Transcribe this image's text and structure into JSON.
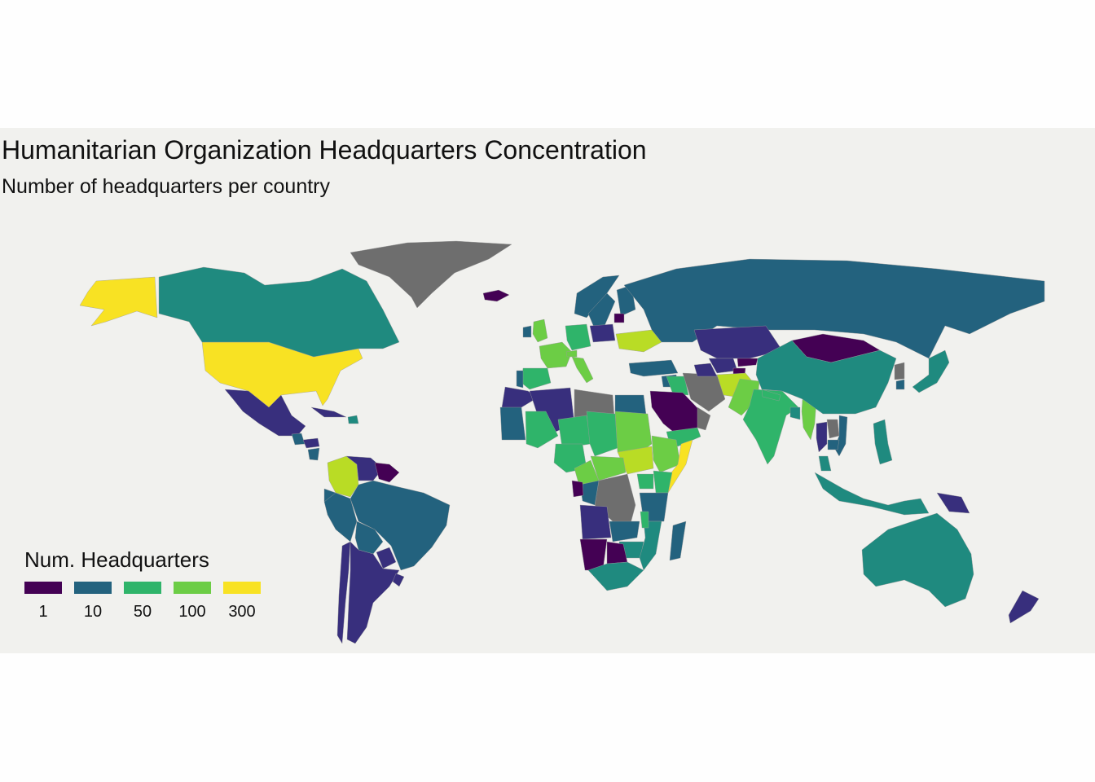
{
  "title": "Humanitarian Organization Headquarters Concentration",
  "subtitle": "Number of headquarters per country",
  "legend": {
    "title": "Num. Headquarters",
    "items": [
      {
        "label": "1",
        "color": "#440154"
      },
      {
        "label": "10",
        "color": "#23627e"
      },
      {
        "label": "50",
        "color": "#2fb46a"
      },
      {
        "label": "100",
        "color": "#6ccd45"
      },
      {
        "label": "300",
        "color": "#f8e223"
      }
    ]
  },
  "colors": {
    "background": "#f1f1ee",
    "no_data": "#6e6e6e",
    "v1": "#440154",
    "v5": "#382f7d",
    "v10": "#23627e",
    "v30": "#1f8a7f",
    "v50": "#2fb46a",
    "v100": "#6ccd45",
    "v200": "#b9dc25",
    "v300": "#f8e223"
  },
  "chart_data": {
    "type": "choropleth",
    "scale": "log",
    "legend_breaks": [
      1,
      10,
      50,
      100,
      300
    ],
    "regions": [
      {
        "name": "United States",
        "value": 300
      },
      {
        "name": "Alaska",
        "value": 300
      },
      {
        "name": "Canada",
        "value": 30
      },
      {
        "name": "Greenland",
        "value": null
      },
      {
        "name": "Iceland",
        "value": 1
      },
      {
        "name": "Mexico",
        "value": 5
      },
      {
        "name": "Guatemala",
        "value": 10
      },
      {
        "name": "Honduras",
        "value": 5
      },
      {
        "name": "Nicaragua",
        "value": 10
      },
      {
        "name": "Cuba",
        "value": 5
      },
      {
        "name": "Haiti",
        "value": 30
      },
      {
        "name": "Colombia",
        "value": 200
      },
      {
        "name": "Venezuela",
        "value": 5
      },
      {
        "name": "Guyana",
        "value": 1
      },
      {
        "name": "Ecuador",
        "value": 10
      },
      {
        "name": "Peru",
        "value": 10
      },
      {
        "name": "Brazil",
        "value": 10
      },
      {
        "name": "Bolivia",
        "value": 10
      },
      {
        "name": "Paraguay",
        "value": 5
      },
      {
        "name": "Chile",
        "value": 5
      },
      {
        "name": "Argentina",
        "value": 5
      },
      {
        "name": "Uruguay",
        "value": 5
      },
      {
        "name": "United Kingdom",
        "value": 100
      },
      {
        "name": "Ireland",
        "value": 10
      },
      {
        "name": "France",
        "value": 100
      },
      {
        "name": "Spain",
        "value": 50
      },
      {
        "name": "Portugal",
        "value": 10
      },
      {
        "name": "Italy",
        "value": 100
      },
      {
        "name": "Germany",
        "value": 50
      },
      {
        "name": "Switzerland",
        "value": 100
      },
      {
        "name": "Norway",
        "value": 10
      },
      {
        "name": "Sweden",
        "value": 10
      },
      {
        "name": "Finland",
        "value": 10
      },
      {
        "name": "Poland",
        "value": 5
      },
      {
        "name": "Lithuania",
        "value": 1
      },
      {
        "name": "Ukraine",
        "value": 200
      },
      {
        "name": "Russia",
        "value": 10
      },
      {
        "name": "Turkey",
        "value": 10
      },
      {
        "name": "Syria",
        "value": 10
      },
      {
        "name": "Iraq",
        "value": 50
      },
      {
        "name": "Iran",
        "value": null
      },
      {
        "name": "Saudi Arabia",
        "value": 1
      },
      {
        "name": "Yemen",
        "value": 50
      },
      {
        "name": "Oman",
        "value": null
      },
      {
        "name": "Kazakhstan",
        "value": 5
      },
      {
        "name": "Uzbekistan",
        "value": 5
      },
      {
        "name": "Turkmenistan",
        "value": 5
      },
      {
        "name": "Kyrgyzstan",
        "value": 1
      },
      {
        "name": "Tajikistan",
        "value": 1
      },
      {
        "name": "Afghanistan",
        "value": 200
      },
      {
        "name": "Pakistan",
        "value": 100
      },
      {
        "name": "India",
        "value": 50
      },
      {
        "name": "Nepal",
        "value": 50
      },
      {
        "name": "Bangladesh",
        "value": 30
      },
      {
        "name": "Myanmar",
        "value": 100
      },
      {
        "name": "Mongolia",
        "value": 1
      },
      {
        "name": "China",
        "value": 30
      },
      {
        "name": "North Korea",
        "value": null
      },
      {
        "name": "South Korea",
        "value": 10
      },
      {
        "name": "Japan",
        "value": 30
      },
      {
        "name": "Thailand",
        "value": 5
      },
      {
        "name": "Laos",
        "value": null
      },
      {
        "name": "Vietnam",
        "value": 10
      },
      {
        "name": "Cambodia",
        "value": 10
      },
      {
        "name": "Philippines",
        "value": 30
      },
      {
        "name": "Malaysia",
        "value": 30
      },
      {
        "name": "Indonesia",
        "value": 30
      },
      {
        "name": "Papua New Guinea",
        "value": 5
      },
      {
        "name": "Australia",
        "value": 30
      },
      {
        "name": "New Zealand",
        "value": 5
      },
      {
        "name": "Morocco",
        "value": 5
      },
      {
        "name": "Algeria",
        "value": 5
      },
      {
        "name": "Libya",
        "value": null
      },
      {
        "name": "Egypt",
        "value": 10
      },
      {
        "name": "Mauritania",
        "value": 10
      },
      {
        "name": "Mali",
        "value": 50
      },
      {
        "name": "Niger",
        "value": 50
      },
      {
        "name": "Chad",
        "value": 50
      },
      {
        "name": "Sudan",
        "value": 100
      },
      {
        "name": "South Sudan",
        "value": 200
      },
      {
        "name": "Ethiopia",
        "value": 100
      },
      {
        "name": "Somalia",
        "value": 300
      },
      {
        "name": "Nigeria",
        "value": 50
      },
      {
        "name": "Cameroon",
        "value": 100
      },
      {
        "name": "Central African Republic",
        "value": 100
      },
      {
        "name": "DR Congo",
        "value": null
      },
      {
        "name": "Congo",
        "value": 10
      },
      {
        "name": "Gabon",
        "value": 1
      },
      {
        "name": "Kenya",
        "value": 50
      },
      {
        "name": "Uganda",
        "value": 50
      },
      {
        "name": "Tanzania",
        "value": 10
      },
      {
        "name": "Angola",
        "value": 5
      },
      {
        "name": "Zambia",
        "value": 10
      },
      {
        "name": "Zimbabwe",
        "value": 30
      },
      {
        "name": "Mozambique",
        "value": 30
      },
      {
        "name": "Malawi",
        "value": 50
      },
      {
        "name": "Namibia",
        "value": 1
      },
      {
        "name": "Botswana",
        "value": 1
      },
      {
        "name": "South Africa",
        "value": 30
      },
      {
        "name": "Madagascar",
        "value": 10
      }
    ]
  }
}
